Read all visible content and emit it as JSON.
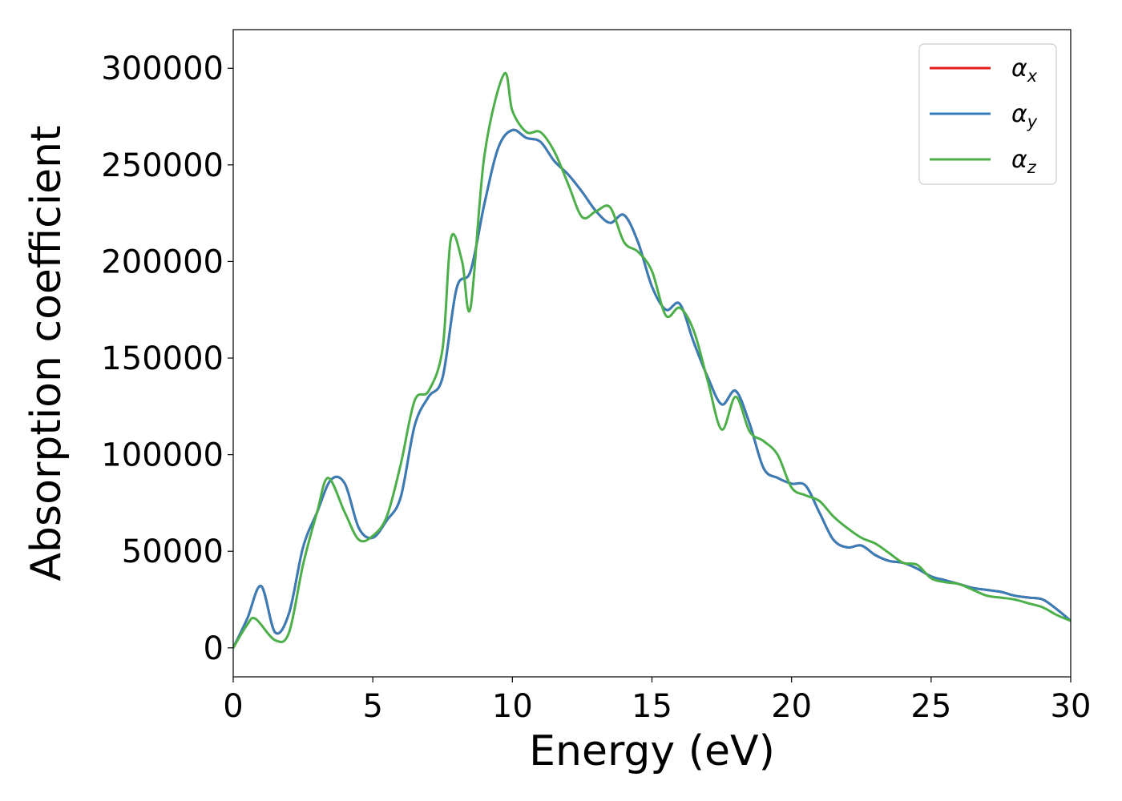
{
  "chart_data": {
    "type": "line",
    "title": "",
    "xlabel": "Energy (eV)",
    "ylabel": "Absorption coefficient",
    "xlim": [
      0,
      30
    ],
    "ylim": [
      -15000,
      320000
    ],
    "xticks": [
      0,
      5,
      10,
      15,
      20,
      25,
      30
    ],
    "yticks": [
      0,
      50000,
      100000,
      150000,
      200000,
      250000,
      300000
    ],
    "grid": false,
    "legend_position": "top-right",
    "legend": [
      {
        "symbol": "α",
        "sub": "x",
        "color": "#e41a1c"
      },
      {
        "symbol": "α",
        "sub": "y",
        "color": "#377eb8"
      },
      {
        "symbol": "α",
        "sub": "z",
        "color": "#4daf4a"
      }
    ],
    "series": [
      {
        "color": "#e41a1c",
        "x": [
          0,
          0.5,
          1.0,
          1.5,
          2.0,
          2.5,
          3.0,
          3.5,
          4.0,
          4.5,
          5.0,
          5.5,
          6.0,
          6.5,
          7.0,
          7.5,
          8.0,
          8.5,
          9.0,
          9.5,
          10.0,
          10.5,
          11.0,
          11.5,
          12.0,
          12.5,
          13.0,
          13.5,
          14.0,
          14.5,
          15.0,
          15.5,
          16.0,
          16.5,
          17.0,
          17.5,
          18.0,
          18.5,
          19.0,
          19.5,
          20.0,
          20.5,
          21.0,
          21.5,
          22.0,
          22.5,
          23.0,
          23.5,
          24.0,
          24.5,
          25.0,
          25.5,
          26.0,
          26.5,
          27.0,
          27.5,
          28.0,
          28.5,
          29.0,
          29.5,
          30.0
        ],
        "y": [
          0,
          15000,
          32000,
          8000,
          18000,
          52000,
          70000,
          87000,
          85000,
          62000,
          57000,
          66000,
          78000,
          115000,
          130000,
          140000,
          186000,
          195000,
          230000,
          259000,
          268000,
          264000,
          262000,
          252000,
          245000,
          236000,
          226000,
          220000,
          224000,
          210000,
          187000,
          175000,
          178000,
          158000,
          140000,
          126000,
          133000,
          116000,
          93000,
          88000,
          85000,
          84000,
          70000,
          56000,
          52000,
          53000,
          48000,
          45000,
          44000,
          41000,
          37000,
          35000,
          33000,
          31000,
          30000,
          29000,
          27000,
          26000,
          25000,
          20000,
          14000
        ]
      },
      {
        "color": "#377eb8",
        "x": [
          0,
          0.5,
          1.0,
          1.5,
          2.0,
          2.5,
          3.0,
          3.5,
          4.0,
          4.5,
          5.0,
          5.5,
          6.0,
          6.5,
          7.0,
          7.5,
          8.0,
          8.5,
          9.0,
          9.5,
          10.0,
          10.5,
          11.0,
          11.5,
          12.0,
          12.5,
          13.0,
          13.5,
          14.0,
          14.5,
          15.0,
          15.5,
          16.0,
          16.5,
          17.0,
          17.5,
          18.0,
          18.5,
          19.0,
          19.5,
          20.0,
          20.5,
          21.0,
          21.5,
          22.0,
          22.5,
          23.0,
          23.5,
          24.0,
          24.5,
          25.0,
          25.5,
          26.0,
          26.5,
          27.0,
          27.5,
          28.0,
          28.5,
          29.0,
          29.5,
          30.0
        ],
        "y": [
          0,
          15000,
          32000,
          8000,
          18000,
          52000,
          70000,
          87000,
          85000,
          62000,
          57000,
          66000,
          78000,
          115000,
          130000,
          140000,
          186000,
          195000,
          230000,
          259000,
          268000,
          264000,
          262000,
          252000,
          245000,
          236000,
          226000,
          220000,
          224000,
          210000,
          187000,
          175000,
          178000,
          158000,
          140000,
          126000,
          133000,
          116000,
          93000,
          88000,
          85000,
          84000,
          70000,
          56000,
          52000,
          53000,
          48000,
          45000,
          44000,
          41000,
          37000,
          35000,
          33000,
          31000,
          30000,
          29000,
          27000,
          26000,
          25000,
          20000,
          14000
        ]
      },
      {
        "color": "#4daf4a",
        "x": [
          0,
          0.5,
          0.8,
          1.5,
          2.0,
          2.5,
          3.0,
          3.4,
          4.0,
          4.5,
          5.0,
          5.5,
          6.0,
          6.5,
          7.0,
          7.5,
          7.8,
          8.2,
          8.5,
          9.0,
          9.7,
          10.0,
          10.5,
          11.0,
          11.5,
          12.0,
          12.5,
          13.0,
          13.5,
          14.0,
          14.5,
          15.0,
          15.5,
          16.0,
          16.5,
          17.0,
          17.5,
          18.0,
          18.5,
          19.0,
          19.5,
          20.0,
          20.5,
          21.0,
          21.5,
          22.0,
          22.5,
          23.0,
          23.5,
          24.0,
          24.5,
          25.0,
          25.5,
          26.0,
          26.5,
          27.0,
          27.5,
          28.0,
          28.5,
          29.0,
          29.5,
          30.0
        ],
        "y": [
          0,
          12000,
          15000,
          4000,
          8000,
          43000,
          70000,
          88000,
          70000,
          56000,
          58000,
          68000,
          95000,
          128000,
          133000,
          155000,
          212000,
          200000,
          176000,
          255000,
          297000,
          278000,
          267000,
          267000,
          257000,
          240000,
          223000,
          226000,
          228000,
          210000,
          205000,
          195000,
          172000,
          176000,
          164000,
          138000,
          113000,
          130000,
          112000,
          107000,
          100000,
          83000,
          79000,
          76000,
          68000,
          62000,
          57000,
          54000,
          49000,
          44000,
          43000,
          36000,
          34000,
          33000,
          30000,
          27000,
          26000,
          25000,
          23000,
          21000,
          17000,
          14000
        ]
      }
    ]
  }
}
